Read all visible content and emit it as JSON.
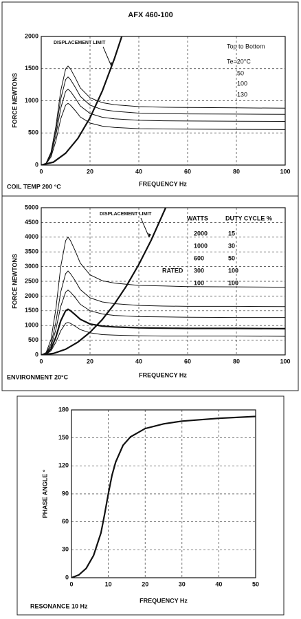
{
  "chart_data": [
    {
      "type": "line",
      "title": "AFX 460-100",
      "xlabel": "FREQUENCY Hz",
      "ylabel": "FORCE NEWTONS",
      "footnote": "COIL TEMP 200 °C",
      "legend_title": "Top to Bottom",
      "grid": true,
      "xlim": [
        0,
        100
      ],
      "xticks": [
        0,
        20,
        40,
        60,
        80,
        100
      ],
      "ylim": [
        0,
        2000
      ],
      "yticks": [
        0,
        500,
        1000,
        1500,
        2000
      ],
      "x": [
        0,
        2,
        4,
        6,
        8,
        10,
        11,
        12,
        14,
        16,
        20,
        25,
        30,
        40,
        50,
        60,
        80,
        100
      ],
      "series": [
        {
          "name": "Te=20°C",
          "color": "#111111",
          "values": [
            0,
            31,
            200,
            600,
            1155,
            1494,
            1540,
            1494,
            1355,
            1201,
            1047,
            970,
            939,
            909,
            899,
            895,
            890,
            885
          ]
        },
        {
          "name": "50",
          "color": "#111111",
          "values": [
            0,
            27,
            178,
            534,
            1028,
            1329,
            1370,
            1329,
            1206,
            1069,
            932,
            863,
            836,
            808,
            800,
            796,
            792,
            788
          ]
        },
        {
          "name": "100",
          "color": "#111111",
          "values": [
            0,
            24,
            153,
            460,
            885,
            1145,
            1180,
            1145,
            1038,
            920,
            802,
            743,
            720,
            696,
            689,
            686,
            682,
            679
          ]
        },
        {
          "name": "130",
          "color": "#111111",
          "values": [
            0,
            19,
            125,
            374,
            720,
            931,
            960,
            931,
            845,
            749,
            653,
            605,
            586,
            566,
            561,
            558,
            555,
            552
          ]
        },
        {
          "name": "DISPLACEMENT LIMIT",
          "color": "#111111",
          "limit": true,
          "x": [
            0,
            5,
            10,
            15,
            20,
            25,
            30,
            33
          ],
          "values": [
            0,
            46,
            184,
            414,
            736,
            1150,
            1656,
            2000
          ]
        }
      ]
    },
    {
      "type": "line",
      "xlabel": "FREQUENCY Hz",
      "ylabel": "FORCE NEWTONS",
      "footnote": "ENVIRONMENT 20°C",
      "legend_title": "WATTS",
      "duty_title": "DUTY CYCLE %",
      "grid": true,
      "xlim": [
        0,
        100
      ],
      "xticks": [
        0,
        20,
        40,
        60,
        80,
        100
      ],
      "ylim": [
        0,
        5000
      ],
      "yticks": [
        0,
        500,
        1000,
        1500,
        2000,
        2500,
        3000,
        3500,
        4000,
        4500,
        5000
      ],
      "x": [
        0,
        2,
        4,
        6,
        8,
        10,
        11,
        12,
        14,
        16,
        20,
        25,
        30,
        40,
        50,
        60,
        80,
        100
      ],
      "series": [
        {
          "name": "2000",
          "duty_cycle": 15,
          "color": "#111111",
          "values": [
            0,
            80,
            520,
            1560,
            3000,
            3880,
            4000,
            3880,
            3520,
            3120,
            2720,
            2520,
            2440,
            2360,
            2340,
            2320,
            2310,
            2300
          ]
        },
        {
          "name": "1000",
          "duty_cycle": 30,
          "color": "#111111",
          "values": [
            0,
            57,
            370,
            1110,
            2140,
            2760,
            2850,
            2760,
            2510,
            2220,
            1940,
            1800,
            1740,
            1680,
            1660,
            1650,
            1650,
            1640
          ]
        },
        {
          "name": "600",
          "duty_cycle": 50,
          "color": "#111111",
          "values": [
            0,
            44,
            290,
            860,
            1650,
            2130,
            2200,
            2130,
            1940,
            1720,
            1500,
            1390,
            1340,
            1300,
            1290,
            1280,
            1270,
            1270
          ]
        },
        {
          "name": "300",
          "duty_cycle": 100,
          "tag": "RATED",
          "bold": true,
          "color": "#111111",
          "values": [
            0,
            31,
            200,
            600,
            1160,
            1500,
            1550,
            1500,
            1360,
            1210,
            1050,
            980,
            950,
            920,
            910,
            900,
            900,
            890
          ]
        },
        {
          "name": "100",
          "duty_cycle": 100,
          "color": "#111111",
          "values": [
            0,
            22,
            140,
            430,
            820,
            1070,
            1100,
            1070,
            970,
            860,
            750,
            690,
            670,
            650,
            640,
            640,
            640,
            630
          ]
        },
        {
          "name": "DISPLACEMENT LIMIT",
          "color": "#111111",
          "limit": true,
          "x": [
            0,
            5,
            10,
            15,
            20,
            25,
            30,
            35,
            40,
            45,
            51
          ],
          "values": [
            0,
            48,
            192,
            432,
            768,
            1200,
            1728,
            2352,
            3072,
            3888,
            5000
          ]
        }
      ]
    },
    {
      "type": "line",
      "xlabel": "FREQUENCY Hz",
      "ylabel": "PHASE ANGLE °",
      "footnote": "RESONANCE 10 Hz",
      "grid": true,
      "xlim": [
        0,
        50
      ],
      "xticks": [
        0,
        10,
        20,
        30,
        40,
        50
      ],
      "ylim": [
        0,
        180
      ],
      "yticks": [
        0,
        30,
        60,
        90,
        120,
        150,
        180
      ],
      "x": [
        0,
        2,
        4,
        6,
        8,
        9,
        10,
        11,
        12,
        14,
        16,
        20,
        25,
        30,
        40,
        50
      ],
      "series": [
        {
          "color": "#111111",
          "bold": true,
          "values": [
            0,
            3,
            10,
            24,
            48,
            68,
            90,
            110,
            124,
            142,
            151,
            160,
            165,
            168,
            171,
            173
          ]
        }
      ]
    }
  ]
}
